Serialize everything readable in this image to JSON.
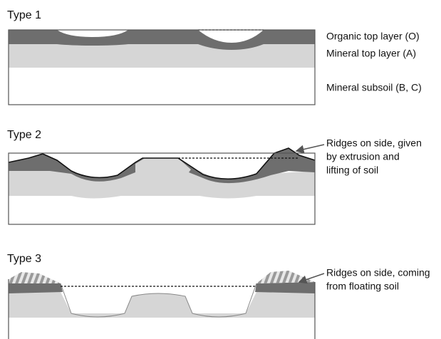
{
  "panels": [
    {
      "title": "Type 1",
      "labels": [
        "Organic top layer (O)",
        "Mineral top layer (A)",
        "Mineral subsoil (B, C)"
      ]
    },
    {
      "title": "Type 2",
      "annotation": [
        "Ridges on side, given",
        "by extrusion and",
        "lifting of soil"
      ]
    },
    {
      "title": "Type 3",
      "annotation": [
        "Ridges on side, coming",
        "from floating soil"
      ]
    }
  ]
}
